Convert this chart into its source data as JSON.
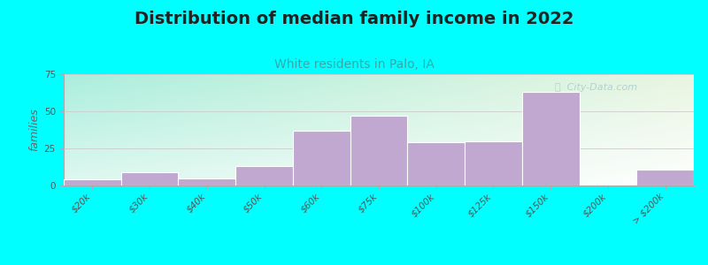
{
  "title": "Distribution of median family income in 2022",
  "subtitle": "White residents in Palo, IA",
  "ylabel": "families",
  "categories": [
    "$20k",
    "$30k",
    "$40k",
    "$50k",
    "$60k",
    "$75k",
    "$100k",
    "$125k",
    "$150k",
    "$200k",
    "> $200k"
  ],
  "values": [
    4,
    9,
    5,
    13,
    37,
    47,
    29,
    30,
    63,
    0,
    11
  ],
  "bar_color": "#c0a8d0",
  "bar_edge_color": "#ffffff",
  "background_color": "#00ffff",
  "plot_bg_color_tl": "#aaeedd",
  "plot_bg_color_tr": "#e8f5e0",
  "plot_bg_color_bl": "#e0f8f0",
  "plot_bg_color_br": "#ffffff",
  "title_fontsize": 14,
  "subtitle_fontsize": 10,
  "title_color": "#222222",
  "subtitle_color": "#33aaaa",
  "ylabel_fontsize": 9,
  "tick_fontsize": 7.5,
  "tick_color": "#555555",
  "ylim": [
    0,
    75
  ],
  "yticks": [
    0,
    25,
    50,
    75
  ],
  "watermark": "ⓘ  City-Data.com",
  "watermark_color": "#aacccc"
}
